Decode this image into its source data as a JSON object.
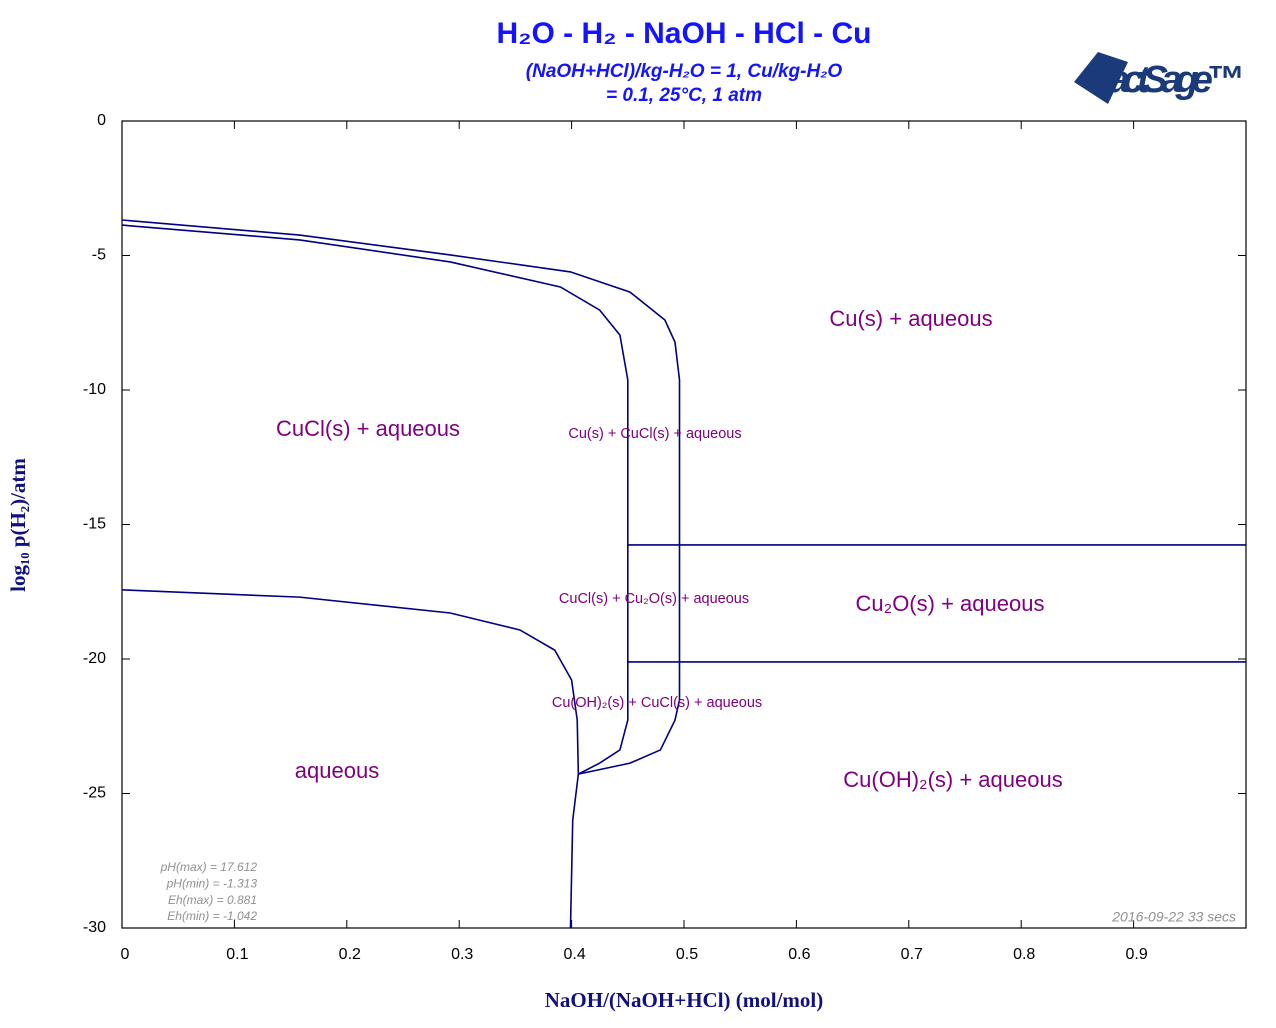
{
  "chart_data": {
    "type": "line",
    "title": "H₂O - H₂ - NaOH - HCl - Cu",
    "subtitle": [
      "(NaOH+HCl)/kg-H₂O = 1,  Cu/kg-H₂O",
      "= 0.1,  25°C, 1 atm"
    ],
    "x_label": "NaOH/(NaOH+HCl) (mol/mol)",
    "y_label": "log₁₀ p(H₂)/atm",
    "xlim": [
      0,
      1
    ],
    "ylim": [
      -30,
      0
    ],
    "xticks": [
      0,
      0.1,
      0.2,
      0.3,
      0.4,
      0.5,
      0.6,
      0.7,
      0.8,
      0.9
    ],
    "yticks": [
      0,
      -5,
      -10,
      -15,
      -20,
      -25,
      -30
    ],
    "series": [
      {
        "color": "#000080",
        "x": [
          0,
          0.158,
          0.292,
          0.399,
          0.452,
          0.483,
          0.492,
          0.496,
          0.496,
          0.492,
          0.479,
          0.452,
          0.406
        ],
        "values": [
          -3.68,
          -4.24,
          -4.98,
          -5.61,
          -6.36,
          -7.4,
          -8.22,
          -9.63,
          -21.52,
          -22.27,
          -23.38,
          -23.87,
          -24.28
        ]
      },
      {
        "color": "#000080",
        "x": [
          0,
          0.158,
          0.292,
          0.39,
          0.425,
          0.443,
          0.45,
          0.45,
          0.443,
          0.425,
          0.406
        ],
        "values": [
          -3.87,
          -4.42,
          -5.24,
          -6.17,
          -7.03,
          -7.96,
          -9.63,
          -22.27,
          -23.38,
          -23.87,
          -24.28
        ]
      },
      {
        "color": "#000080",
        "x": [
          0,
          0.158,
          0.292,
          0.354,
          0.385,
          0.4,
          0.405,
          0.406,
          0.401,
          0.399
        ],
        "values": [
          -17.43,
          -17.7,
          -18.29,
          -18.92,
          -19.67,
          -20.78,
          -22.27,
          -24.28,
          -25.99,
          -30
        ]
      },
      {
        "color": "#000080",
        "x": [
          0.45,
          1
        ],
        "values": [
          -15.76,
          -15.76
        ]
      },
      {
        "color": "#000080",
        "x": [
          0.45,
          1
        ],
        "values": [
          -20.11,
          -20.11
        ]
      }
    ],
    "annotations": [
      "Cu(s) + aqueous",
      "CuCl(s) + aqueous",
      "Cu(s) + CuCl(s) + aqueous",
      "CuCl(s) + Cu₂O(s) + aqueous",
      "Cu₂O(s) + aqueous",
      "Cu(OH)₂(s) + CuCl(s) + aqueous",
      "aqueous",
      "Cu(OH)₂(s) + aqueous"
    ],
    "stats": [
      "pH(max)  = 17.612",
      "pH(min)  = -1.313",
      "Eh(max)  = 0.881",
      "Eh(min)  = -1.042"
    ],
    "timestamp": "2016-09-22  33 secs",
    "logo": "FactSage™"
  }
}
